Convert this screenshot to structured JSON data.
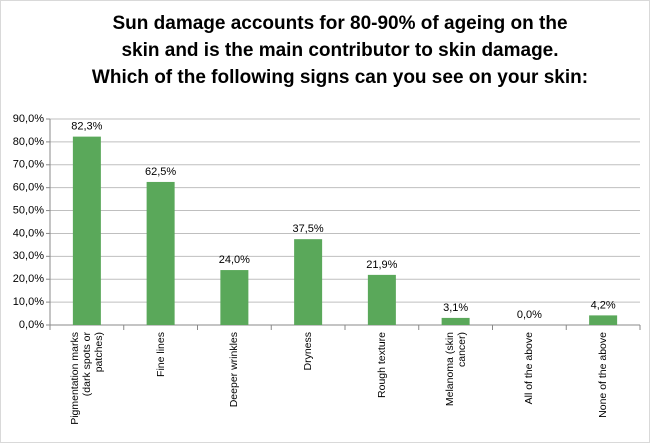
{
  "chart_data": {
    "type": "bar",
    "title": [
      "Sun damage accounts for 80-90% of ageing on the",
      "skin and is the main contributor to skin damage.",
      "Which of the following signs can you see on your skin:"
    ],
    "categories": [
      "Pigmentation marks (dark spots or patches)",
      "Fine lines",
      "Deeper wrinkles",
      "Dryness",
      "Rough texture",
      "Melanoma (skin cancer)",
      "All of the above",
      "None of the above"
    ],
    "values": [
      82.3,
      62.5,
      24.0,
      37.5,
      21.9,
      3.1,
      0.0,
      4.2
    ],
    "value_labels": [
      "82,3%",
      "62,5%",
      "24,0%",
      "37,5%",
      "21,9%",
      "3,1%",
      "0,0%",
      "4,2%"
    ],
    "color": "#5aa85a",
    "ylim": [
      0,
      90
    ],
    "yticks": [
      {
        "value": 0,
        "label": "0,0%"
      },
      {
        "value": 10,
        "label": "10,0%"
      },
      {
        "value": 20,
        "label": "20,0%"
      },
      {
        "value": 30,
        "label": "30,0%"
      },
      {
        "value": 40,
        "label": "40,0%"
      },
      {
        "value": 50,
        "label": "50,0%"
      },
      {
        "value": 60,
        "label": "60,0%"
      },
      {
        "value": 70,
        "label": "70,0%"
      },
      {
        "value": 80,
        "label": "80,0%"
      },
      {
        "value": 90,
        "label": "90,0%"
      }
    ],
    "grid": true
  }
}
